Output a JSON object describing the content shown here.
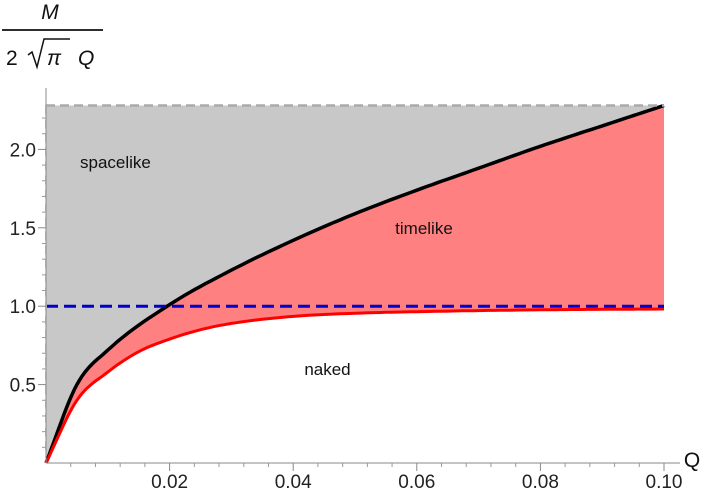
{
  "chart_data": {
    "type": "area",
    "xlabel": "Q",
    "ylabel": {
      "numerator": "M",
      "denominator_coefficient": "2",
      "denominator_radicand": "π",
      "denominator_variable": "Q"
    },
    "xlim": [
      0,
      0.1
    ],
    "ylim": [
      0,
      2.3
    ],
    "x_ticks": [
      {
        "value": 0.02,
        "label": "0.02"
      },
      {
        "value": 0.04,
        "label": "0.04"
      },
      {
        "value": 0.06,
        "label": "0.06"
      },
      {
        "value": 0.08,
        "label": "0.08"
      },
      {
        "value": 0.1,
        "label": "0.10"
      }
    ],
    "y_ticks": [
      {
        "value": 0.5,
        "label": "0.5"
      },
      {
        "value": 1.0,
        "label": "1.0"
      },
      {
        "value": 1.5,
        "label": "1.5"
      },
      {
        "value": 2.0,
        "label": "2.0"
      }
    ],
    "grid": false,
    "series": [
      {
        "key": "upper",
        "color": "#000000",
        "x": [
          0,
          0.005,
          0.01,
          0.02,
          0.03,
          0.04,
          0.05,
          0.06,
          0.07,
          0.08,
          0.09,
          0.1
        ],
        "y": [
          0.0,
          0.5,
          0.72,
          1.01,
          1.23,
          1.42,
          1.59,
          1.74,
          1.88,
          2.02,
          2.15,
          2.28
        ]
      },
      {
        "key": "lower",
        "color": "#ff0000",
        "x": [
          0,
          0.005,
          0.01,
          0.015,
          0.02,
          0.025,
          0.03,
          0.04,
          0.05,
          0.06,
          0.07,
          0.08,
          0.09,
          0.1
        ],
        "y": [
          0.0,
          0.4,
          0.58,
          0.71,
          0.79,
          0.85,
          0.89,
          0.935,
          0.955,
          0.965,
          0.972,
          0.977,
          0.98,
          0.982
        ]
      },
      {
        "key": "horizon",
        "color": "#0000cc",
        "style": "dashed",
        "x": [
          0,
          0.1
        ],
        "y": [
          1.0,
          1.0
        ]
      },
      {
        "key": "top",
        "color": "#aaaaaa",
        "style": "dashed",
        "x": [
          0,
          0.1
        ],
        "y": [
          2.28,
          2.28
        ]
      }
    ],
    "regions": [
      {
        "label": "spacelike",
        "color": "#c8c8c8",
        "x": 0.0055,
        "y": 1.92
      },
      {
        "label": "timelike",
        "color": "#ff8080",
        "x": 0.0565,
        "y": 1.5
      },
      {
        "label": "naked",
        "x": 0.0418,
        "y": 0.6
      }
    ]
  }
}
